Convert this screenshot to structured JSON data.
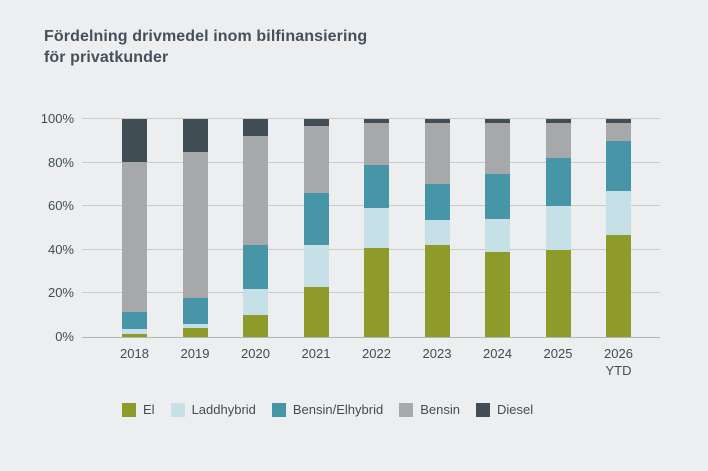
{
  "title": "Fördelning drivmedel inom bilfinansiering\nför privatkunder",
  "colors": {
    "background": "#edeef0",
    "title_text": "#44515b",
    "axis_text": "#3f4d56",
    "gridline": "#c9cacc",
    "baseline": "#b3b5b7"
  },
  "chart_data": {
    "type": "bar",
    "stacked": true,
    "unit": "percent",
    "title": "Fördelning drivmedel inom bilfinansiering för privatkunder",
    "xlabel": "",
    "ylabel": "",
    "ylim": [
      0,
      100
    ],
    "grid": true,
    "legend_position": "bottom",
    "y_ticks": [
      "0%",
      "20%",
      "40%",
      "60%",
      "80%",
      "100%"
    ],
    "categories": [
      "2018",
      "2019",
      "2020",
      "2021",
      "2022",
      "2023",
      "2024",
      "2025",
      "2026\nYTD"
    ],
    "series": [
      {
        "name": "El",
        "color": "#8e9b28",
        "values": [
          1.5,
          4,
          10,
          23,
          41,
          42,
          39,
          40,
          47
        ]
      },
      {
        "name": "Laddhybrid",
        "color": "#c5e1e7",
        "values": [
          2,
          2,
          12,
          19,
          18,
          11.5,
          15,
          20,
          20
        ]
      },
      {
        "name": "Bensin/Elhybrid",
        "color": "#4796a8",
        "values": [
          8,
          12,
          20,
          24,
          20,
          16.5,
          21,
          22,
          23
        ]
      },
      {
        "name": "Bensin",
        "color": "#a6a8aa",
        "values": [
          69,
          67,
          50,
          31,
          19,
          28,
          23,
          16,
          8
        ]
      },
      {
        "name": "Diesel",
        "color": "#414e56",
        "values": [
          19.5,
          15,
          8,
          3,
          2,
          2,
          2,
          2,
          2
        ]
      }
    ]
  }
}
